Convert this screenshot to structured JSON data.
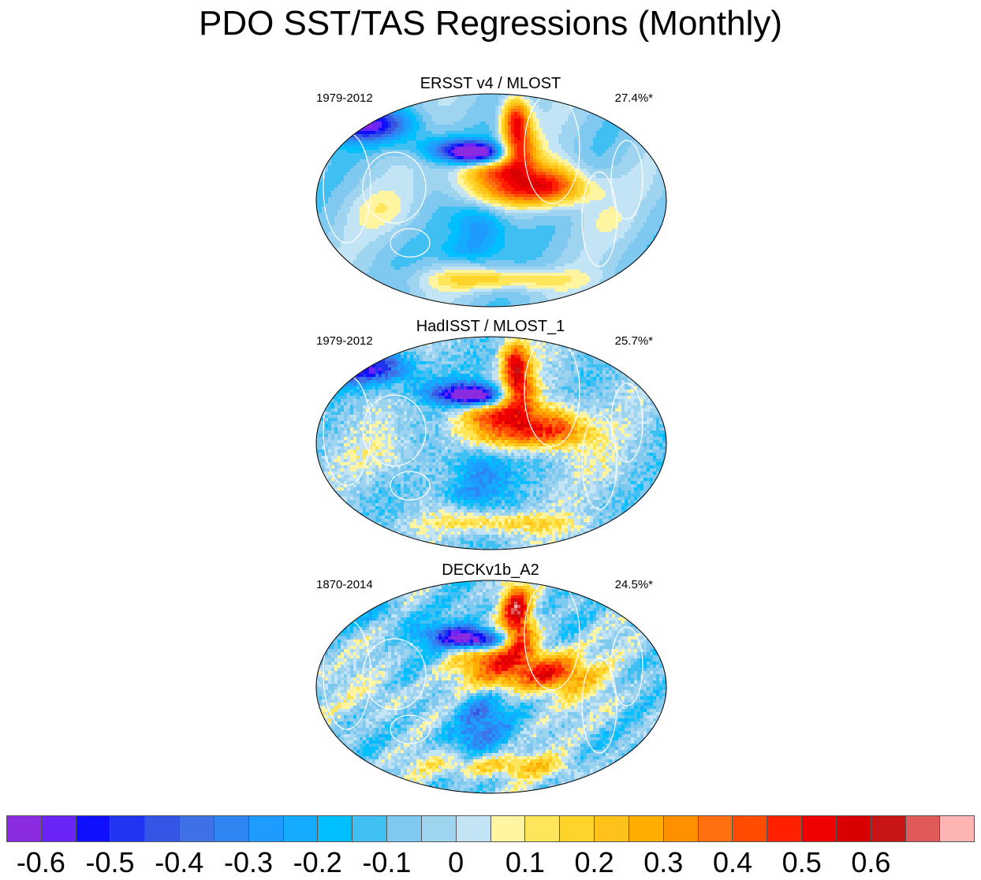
{
  "title": "PDO SST/TAS Regressions (Monthly)",
  "panels": [
    {
      "name": "ERSST v4 / MLOST",
      "period": "1979-2012",
      "variance": "27.4%*",
      "landmask": true,
      "style": "smooth"
    },
    {
      "name": "HadISST / MLOST_1",
      "period": "1979-2012",
      "variance": "25.7%*",
      "landmask": true,
      "style": "noisy"
    },
    {
      "name": "DECKv1b_A2",
      "period": "1870-2014",
      "variance": "24.5%*",
      "landmask": false,
      "style": "noisy"
    }
  ],
  "colorbar": {
    "colors": [
      "#8a2be2",
      "#6a24f5",
      "#1010ff",
      "#1f35f0",
      "#3555e6",
      "#3e70e6",
      "#2f86f2",
      "#1e9bff",
      "#15abff",
      "#00bfff",
      "#40c0f2",
      "#7fc9f0",
      "#9fd4f0",
      "#c3e4f4",
      "#fff5a0",
      "#ffe55a",
      "#ffd42a",
      "#ffc21a",
      "#ffae00",
      "#ff9000",
      "#ff7010",
      "#ff4c00",
      "#ff2000",
      "#f00000",
      "#d80000",
      "#c81414",
      "#e05a5a",
      "#ffb4b4"
    ],
    "labels": [
      "-0.6",
      "-0.5",
      "-0.4",
      "-0.3",
      "-0.2",
      "-0.1",
      "0",
      "0.1",
      "0.2",
      "0.3",
      "0.4",
      "0.5",
      "0.6"
    ],
    "range": [
      -0.65,
      0.65
    ],
    "interval": 0.05
  }
}
